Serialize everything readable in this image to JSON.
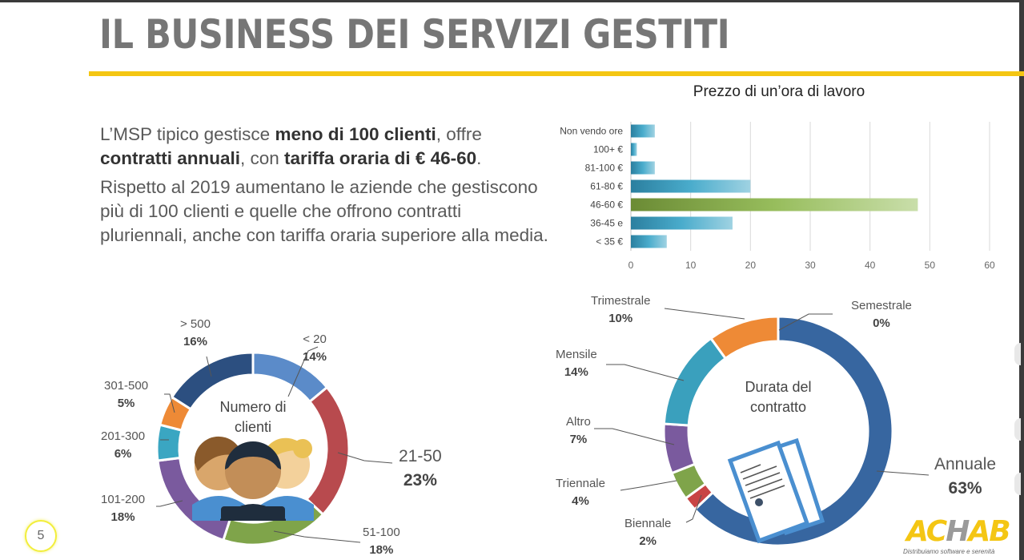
{
  "slide": {
    "title": "IL BUSINESS DEI SERVIZI GESTITI",
    "page_number": "5",
    "accent_color": "#f4c613"
  },
  "body": {
    "p1_a": "L’MSP tipico gestisce ",
    "p1_b": "meno di 100 clienti",
    "p1_c": ", offre ",
    "p1_d": "contratti annuali",
    "p1_e": ", con ",
    "p1_f": "tariffa oraria di € 46-60",
    "p1_g": ".",
    "p2": "Rispetto al 2019 aumentano le aziende che gestiscono più di 100 clienti e quelle che offrono contratti pluriennali, anche con tariffa oraria superiore alla media."
  },
  "logo": {
    "text_a": "AC",
    "text_b": "H",
    "text_c": "AB",
    "tagline": "Distribuiamo software e serenità"
  },
  "chart_data": [
    {
      "type": "bar",
      "orientation": "horizontal",
      "title": "Prezzo di un’ora di lavoro",
      "categories": [
        "Non vendo ore",
        "100+ €",
        "81-100 €",
        "61-80 €",
        "46-60 €",
        "36-45 e",
        "< 35 €"
      ],
      "values": [
        4,
        1,
        4,
        20,
        48,
        17,
        6
      ],
      "highlight": "46-60 €",
      "colors": {
        "default": "#3a9cbf",
        "highlight": "#8db35a"
      },
      "xlim": [
        0,
        60
      ],
      "xticks": [
        0,
        10,
        20,
        30,
        40,
        50,
        60
      ],
      "grid": true,
      "xlabel": "",
      "ylabel": ""
    },
    {
      "type": "pie",
      "variant": "donut",
      "title": "Numero di clienti",
      "categories": [
        "< 20",
        "21-50",
        "51-100",
        "101-200",
        "201-300",
        "301-500",
        "> 500"
      ],
      "values": [
        14,
        23,
        18,
        18,
        6,
        5,
        16
      ],
      "labels": [
        "14%",
        "23%",
        "18%",
        "18%",
        "6%",
        "5%",
        "16%"
      ],
      "colors": [
        "#5b8bc9",
        "#b84a4e",
        "#7fa44a",
        "#7a5a9e",
        "#3aa6c2",
        "#ee8a36",
        "#2c4f80"
      ]
    },
    {
      "type": "pie",
      "variant": "donut",
      "title": "Durata del contratto",
      "categories": [
        "Annuale",
        "Biennale",
        "Triennale",
        "Altro",
        "Mensile",
        "Trimestrale",
        "Semestrale"
      ],
      "values": [
        63,
        2,
        4,
        7,
        14,
        10,
        0
      ],
      "labels": [
        "63%",
        "2%",
        "4%",
        "7%",
        "14%",
        "10%",
        "0%"
      ],
      "colors": [
        "#3766a0",
        "#c84444",
        "#7fa44a",
        "#7a5a9e",
        "#3aa0bd",
        "#ee8a36",
        "#5a87c0"
      ]
    }
  ]
}
